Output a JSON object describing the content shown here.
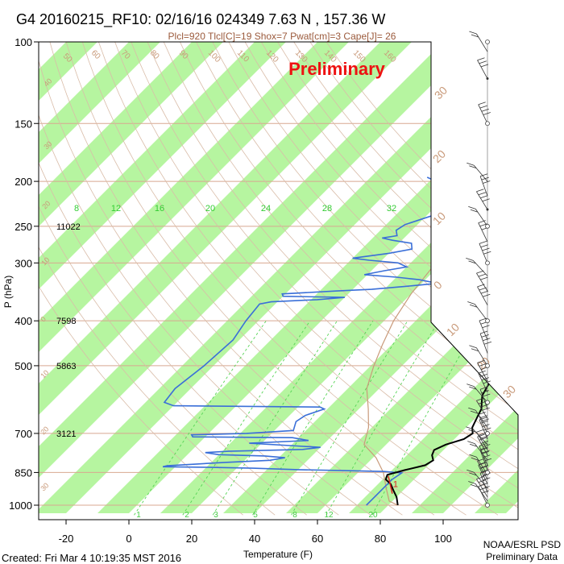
{
  "header": {
    "title": "G4 20160215_RF10: 02/16/16 024349   7.63 N , 157.36 W",
    "subtitle": "Plcl=920 Tlcl[C]=19 Shox=7 Pwat[cm]=3 Cape[J]= 26",
    "watermark": "Preliminary"
  },
  "footer": {
    "created": "Created: Fri Mar  4 10:19:35 MST 2016",
    "org_line1": "NOAA/ESRL PSD",
    "org_line2": "Preliminary Data"
  },
  "chart_data": {
    "type": "line",
    "xlabel": "Temperature (F)",
    "ylabel": "P (hPa)",
    "x_ticks": [
      -20,
      0,
      20,
      40,
      60,
      80,
      100
    ],
    "y_ticks": [
      100,
      150,
      200,
      250,
      300,
      400,
      500,
      700,
      850,
      1000
    ],
    "y_scale": "log",
    "xlim": [
      -28,
      103
    ],
    "ylim": [
      1050,
      100
    ],
    "isotherm_bands": "green diagonal stripes",
    "mixing_ratio_labels": [
      "1",
      "2",
      "3",
      "5",
      "8",
      "12",
      "20"
    ],
    "mixing_ratio_values": [
      1,
      2,
      3,
      5,
      8,
      12,
      20
    ],
    "upper_isotherm_labels": [
      "8",
      "12",
      "16",
      "20",
      "24",
      "28",
      "32"
    ],
    "upper_isotherm_values": [
      8,
      12,
      16,
      20,
      24,
      28,
      32
    ],
    "theta_labels": [
      "50",
      "60",
      "70",
      "80",
      "90",
      "100",
      "110",
      "120",
      "130",
      "140",
      "150",
      "160"
    ],
    "theta_values": [
      50,
      60,
      70,
      80,
      90,
      100,
      110,
      120,
      130,
      140,
      150,
      160
    ],
    "celsius_labels": [
      "30",
      "20",
      "10",
      "0",
      "10",
      "20",
      "30"
    ],
    "celsius_values": [
      -30,
      -20,
      -10,
      0,
      10,
      20,
      30
    ],
    "left_edge_labels": [
      "40",
      "30",
      "20",
      "10",
      "0",
      "10",
      "20",
      "30"
    ],
    "height_labels": [
      {
        "p": 250,
        "text": "11022"
      },
      {
        "p": 400,
        "text": "7598"
      },
      {
        "p": 500,
        "text": "5863"
      },
      {
        "p": 700,
        "text": "3121"
      }
    ],
    "series": [
      {
        "kind": "temperature",
        "color": "#000000",
        "points": [
          [
            33,
            175
          ],
          [
            34,
            190
          ],
          [
            36,
            205
          ],
          [
            39,
            220
          ],
          [
            43,
            240
          ],
          [
            48,
            258
          ],
          [
            53,
            280
          ],
          [
            57,
            300
          ],
          [
            60,
            318
          ],
          [
            62,
            335
          ],
          [
            63,
            345
          ],
          [
            62,
            355
          ],
          [
            63,
            365
          ],
          [
            64,
            380
          ],
          [
            65,
            400
          ],
          [
            67,
            420
          ],
          [
            69,
            440
          ],
          [
            70,
            460
          ],
          [
            71,
            480
          ],
          [
            72,
            500
          ],
          [
            72,
            520
          ],
          [
            73,
            540
          ],
          [
            74,
            560
          ],
          [
            75,
            580
          ],
          [
            77,
            600
          ],
          [
            79,
            620
          ],
          [
            80,
            640
          ],
          [
            81,
            660
          ],
          [
            82,
            680
          ],
          [
            84,
            700
          ],
          [
            83,
            720
          ],
          [
            79,
            740
          ],
          [
            77,
            760
          ],
          [
            78,
            780
          ],
          [
            80,
            800
          ],
          [
            79,
            820
          ],
          [
            74,
            840
          ],
          [
            70,
            860
          ],
          [
            71,
            880
          ],
          [
            74,
            900
          ],
          [
            77,
            930
          ],
          [
            80,
            960
          ],
          [
            83,
            1000
          ]
        ]
      },
      {
        "kind": "dewpoint",
        "color": "#3a6fd8",
        "points": [
          [
            -12,
            196
          ],
          [
            2,
            210
          ],
          [
            6,
            215
          ],
          [
            7,
            225
          ],
          [
            3,
            235
          ],
          [
            -4,
            248
          ],
          [
            -5,
            255
          ],
          [
            -3,
            262
          ],
          [
            -7,
            265
          ],
          [
            -3,
            268
          ],
          [
            4,
            272
          ],
          [
            6,
            280
          ],
          [
            0,
            286
          ],
          [
            -10,
            293
          ],
          [
            -4,
            296
          ],
          [
            6,
            300
          ],
          [
            10,
            306
          ],
          [
            4,
            312
          ],
          [
            -1,
            318
          ],
          [
            10,
            322
          ],
          [
            18,
            326
          ],
          [
            25,
            332
          ],
          [
            18,
            336
          ],
          [
            6,
            342
          ],
          [
            -5,
            345
          ],
          [
            -21,
            350
          ],
          [
            -20,
            354
          ],
          [
            0,
            356
          ],
          [
            -8,
            360
          ],
          [
            -22,
            364
          ],
          [
            -25,
            368
          ],
          [
            -24,
            400
          ],
          [
            -22,
            440
          ],
          [
            -23,
            500
          ],
          [
            -25,
            560
          ],
          [
            -24,
            600
          ],
          [
            -20,
            610
          ],
          [
            5,
            612
          ],
          [
            27,
            614
          ],
          [
            29,
            620
          ],
          [
            25,
            640
          ],
          [
            24,
            660
          ],
          [
            26,
            690
          ],
          [
            12,
            700
          ],
          [
            -5,
            705
          ],
          [
            -4,
            712
          ],
          [
            28,
            715
          ],
          [
            34,
            725
          ],
          [
            16,
            735
          ],
          [
            32,
            745
          ],
          [
            40,
            750
          ],
          [
            35,
            758
          ],
          [
            12,
            765
          ],
          [
            5,
            770
          ],
          [
            10,
            778
          ],
          [
            25,
            783
          ],
          [
            32,
            790
          ],
          [
            28,
            800
          ],
          [
            15,
            808
          ],
          [
            6,
            815
          ],
          [
            -3,
            822
          ],
          [
            -4,
            826
          ],
          [
            10,
            828
          ],
          [
            25,
            832
          ],
          [
            40,
            838
          ],
          [
            55,
            842
          ],
          [
            68,
            846
          ],
          [
            74,
            852
          ],
          [
            73,
            880
          ],
          [
            73,
            930
          ],
          [
            73,
            970
          ],
          [
            73,
            1000
          ]
        ]
      },
      {
        "kind": "parcel",
        "color": "#c99a7a",
        "points": [
          [
            17,
            232
          ],
          [
            18,
            300
          ],
          [
            20,
            350
          ],
          [
            23,
            400
          ],
          [
            27,
            450
          ],
          [
            31,
            500
          ],
          [
            36,
            560
          ],
          [
            43,
            620
          ],
          [
            49,
            680
          ],
          [
            53,
            740
          ],
          [
            61,
            790
          ],
          [
            68,
            850
          ],
          [
            74,
            920
          ],
          [
            79,
            980
          ],
          [
            83,
            1000
          ]
        ]
      }
    ],
    "lcl_label": "1",
    "lcl_marker": {
      "p": 900,
      "t": 74
    },
    "wind_barbs": {
      "pressures": [
        105,
        120,
        150,
        200,
        215,
        230,
        250,
        270,
        300,
        320,
        345,
        370,
        400,
        440,
        470,
        500,
        540,
        570,
        600,
        620,
        650,
        680,
        700,
        720,
        740,
        760,
        780,
        800,
        820,
        840,
        860,
        880,
        900,
        920,
        940,
        960,
        980,
        1000
      ]
    },
    "wind_pole_markers": [
      {
        "p": 100,
        "marker": "circle"
      },
      {
        "p": 120,
        "marker": "dot"
      },
      {
        "p": 150,
        "marker": "circle"
      },
      {
        "p": 230,
        "marker": "dot"
      },
      {
        "p": 250,
        "marker": "circle"
      },
      {
        "p": 300,
        "marker": "circle"
      },
      {
        "p": 400,
        "marker": "circle"
      },
      {
        "p": 500,
        "marker": "circle"
      },
      {
        "p": 600,
        "marker": "circle"
      },
      {
        "p": 700,
        "marker": "circle"
      },
      {
        "p": 850,
        "marker": "circle"
      },
      {
        "p": 1000,
        "marker": "circle"
      }
    ]
  }
}
